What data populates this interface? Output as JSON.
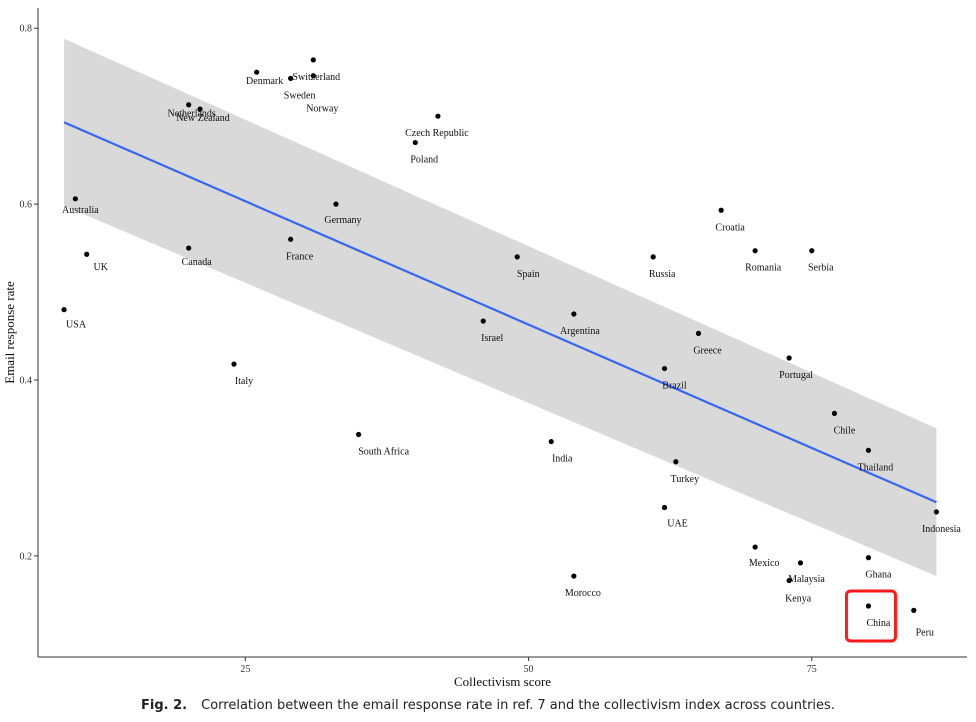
{
  "caption": {
    "label": "Fig. 2.",
    "text": "Correlation between the email response rate in ref. 7 and the collectivism index across countries."
  },
  "colors": {
    "trend_line": "#3366ff",
    "confidence_band": "#d9d9d9",
    "points": "#000000",
    "highlight_box": "#ff1a1a"
  },
  "chart_data": {
    "type": "scatter",
    "xlabel": "Collectivism score",
    "ylabel": "Email response rate",
    "xlim": [
      6.7,
      88.7
    ],
    "ylim": [
      0.085,
      0.823
    ],
    "xticks": [
      25,
      50,
      75
    ],
    "yticks": [
      0.2,
      0.4,
      0.6,
      0.8
    ],
    "grid": false,
    "trend": {
      "x": [
        9,
        86
      ],
      "y": [
        0.693,
        0.261
      ],
      "band_upper": [
        0.788,
        0.345
      ],
      "band_lower": [
        0.598,
        0.177
      ]
    },
    "highlight": "China",
    "points": [
      {
        "label": "Australia",
        "x": 10,
        "y": 0.606
      },
      {
        "label": "UK",
        "x": 11,
        "y": 0.543
      },
      {
        "label": "USA",
        "x": 9,
        "y": 0.48
      },
      {
        "label": "Netherlands",
        "x": 20,
        "y": 0.713
      },
      {
        "label": "New Zealand",
        "x": 21,
        "y": 0.708
      },
      {
        "label": "Canada",
        "x": 20,
        "y": 0.55
      },
      {
        "label": "Italy",
        "x": 24,
        "y": 0.418
      },
      {
        "label": "Denmark",
        "x": 26,
        "y": 0.75
      },
      {
        "label": "Sweden",
        "x": 29,
        "y": 0.743
      },
      {
        "label": "Switzerland",
        "x": 31,
        "y": 0.764
      },
      {
        "label": "Norway",
        "x": 31,
        "y": 0.746
      },
      {
        "label": "France",
        "x": 29,
        "y": 0.56
      },
      {
        "label": "Germany",
        "x": 33,
        "y": 0.6
      },
      {
        "label": "South Africa",
        "x": 35,
        "y": 0.338
      },
      {
        "label": "Czech Republic",
        "x": 42,
        "y": 0.7
      },
      {
        "label": "Poland",
        "x": 40,
        "y": 0.67
      },
      {
        "label": "Israel",
        "x": 46,
        "y": 0.467
      },
      {
        "label": "Spain",
        "x": 49,
        "y": 0.54
      },
      {
        "label": "India",
        "x": 52,
        "y": 0.33
      },
      {
        "label": "Argentina",
        "x": 54,
        "y": 0.475
      },
      {
        "label": "Morocco",
        "x": 54,
        "y": 0.177
      },
      {
        "label": "Russia",
        "x": 61,
        "y": 0.54
      },
      {
        "label": "Brazil",
        "x": 62,
        "y": 0.413
      },
      {
        "label": "Turkey",
        "x": 63,
        "y": 0.307
      },
      {
        "label": "UAE",
        "x": 62,
        "y": 0.255
      },
      {
        "label": "Greece",
        "x": 65,
        "y": 0.453
      },
      {
        "label": "Croatia",
        "x": 67,
        "y": 0.593
      },
      {
        "label": "Romania",
        "x": 70,
        "y": 0.547
      },
      {
        "label": "Mexico",
        "x": 70,
        "y": 0.21
      },
      {
        "label": "Malaysia",
        "x": 74,
        "y": 0.192
      },
      {
        "label": "Kenya",
        "x": 73,
        "y": 0.172
      },
      {
        "label": "Serbia",
        "x": 75,
        "y": 0.547
      },
      {
        "label": "Portugal",
        "x": 73,
        "y": 0.425
      },
      {
        "label": "Chile",
        "x": 77,
        "y": 0.362
      },
      {
        "label": "Thailand",
        "x": 80,
        "y": 0.32
      },
      {
        "label": "Ghana",
        "x": 80,
        "y": 0.198
      },
      {
        "label": "China",
        "x": 80,
        "y": 0.143
      },
      {
        "label": "Peru",
        "x": 84,
        "y": 0.138
      },
      {
        "label": "Indonesia",
        "x": 86,
        "y": 0.25
      }
    ]
  }
}
